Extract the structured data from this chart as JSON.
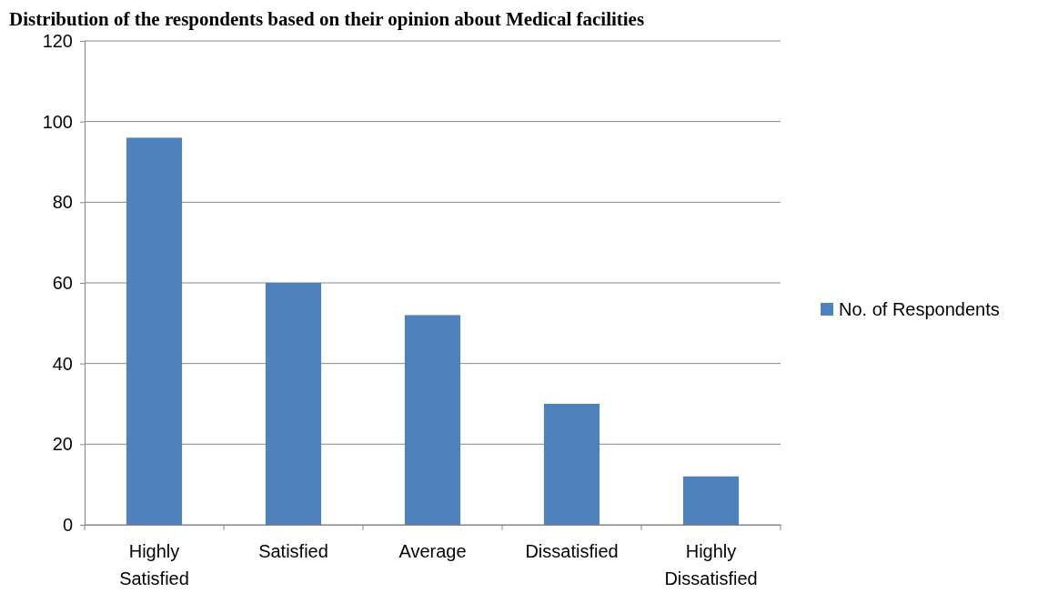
{
  "chart_data": {
    "type": "bar",
    "title": "Distribution of the respondents based on their opinion about Medical facilities",
    "categories": [
      "Highly Satisfied",
      "Satisfied",
      "Average",
      "Dissatisfied",
      "Highly Dissatisfied"
    ],
    "series": [
      {
        "name": "No. of Respondents",
        "color": "#4f81bd",
        "values": [
          96,
          60,
          52,
          30,
          12
        ]
      }
    ],
    "ylim": [
      0,
      120
    ],
    "yticks": [
      0,
      20,
      40,
      60,
      80,
      100,
      120
    ],
    "grid": "y",
    "legend": "right"
  }
}
